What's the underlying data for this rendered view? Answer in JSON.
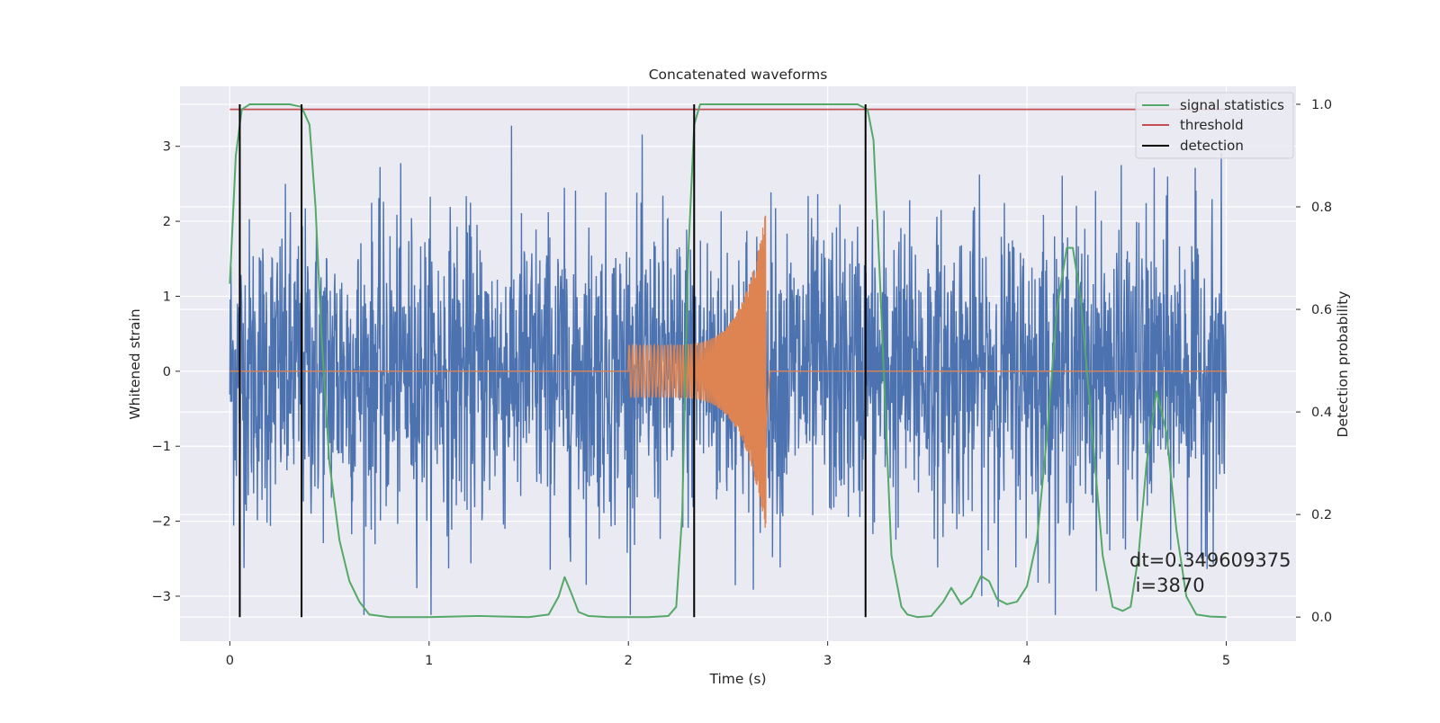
{
  "chart_data": {
    "type": "line",
    "title": "Concatenated waveforms",
    "xlabel": "Time (s)",
    "ylabel_left": "Whitened strain",
    "ylabel_right": "Detection probability",
    "xlim": [
      -0.25,
      5.35
    ],
    "ylim_left": [
      -3.6,
      3.8
    ],
    "ylim_right": [
      -0.047,
      1.035
    ],
    "xticks": [
      0,
      1,
      2,
      3,
      4,
      5
    ],
    "yticks_left": [
      -3,
      -2,
      -1,
      0,
      1,
      2,
      3
    ],
    "yticks_right": [
      0.0,
      0.2,
      0.4,
      0.6,
      0.8,
      1.0
    ],
    "xtick_labels": [
      "0",
      "1",
      "2",
      "3",
      "4",
      "5"
    ],
    "ytick_labels_left": [
      "−3",
      "−2",
      "−1",
      "0",
      "1",
      "2",
      "3"
    ],
    "ytick_labels_right": [
      "0.0",
      "0.2",
      "0.4",
      "0.6",
      "0.8",
      "1.0"
    ],
    "grid": true,
    "legend_position": "top-right",
    "legend": [
      {
        "label": "signal statistics",
        "color": "#55a868"
      },
      {
        "label": "threshold",
        "color": "#c44e52"
      },
      {
        "label": "detection",
        "color": "#000000"
      }
    ],
    "annotation": {
      "line1": "dt=0.349609375",
      "line2": " i=3870"
    },
    "colors": {
      "noise": "#4c72b0",
      "chirp": "#dd8452",
      "background": "#eaeaf2",
      "grid": "#ffffff"
    },
    "series": [
      {
        "name": "noise",
        "axis": "left",
        "x_range": [
          0,
          5
        ],
        "description_values": {
          "typical_amplitude": 1.0,
          "max": 3.4,
          "min": -3.25
        }
      },
      {
        "name": "chirp",
        "axis": "left",
        "x_range": [
          2.0,
          2.7
        ],
        "description_values": {
          "start_amplitude": 0.35,
          "peak_amplitude": 2.15,
          "end_time": 2.69
        }
      },
      {
        "name": "signal statistics",
        "axis": "right",
        "x": [
          0.0,
          0.03,
          0.06,
          0.1,
          0.15,
          0.2,
          0.3,
          0.36,
          0.4,
          0.43,
          0.46,
          0.5,
          0.55,
          0.6,
          0.65,
          0.7,
          0.8,
          1.0,
          1.25,
          1.5,
          1.6,
          1.65,
          1.68,
          1.71,
          1.75,
          1.8,
          1.9,
          2.0,
          2.1,
          2.2,
          2.24,
          2.27,
          2.3,
          2.33,
          2.36,
          2.4,
          2.6,
          2.8,
          3.0,
          3.15,
          3.2,
          3.23,
          3.26,
          3.29,
          3.32,
          3.37,
          3.4,
          3.45,
          3.52,
          3.58,
          3.62,
          3.67,
          3.72,
          3.77,
          3.81,
          3.85,
          3.9,
          3.95,
          4.0,
          4.05,
          4.1,
          4.15,
          4.2,
          4.23,
          4.27,
          4.33,
          4.38,
          4.43,
          4.48,
          4.52,
          4.56,
          4.6,
          4.65,
          4.7,
          4.75,
          4.8,
          4.85,
          4.92,
          5.0
        ],
        "y": [
          0.65,
          0.9,
          0.99,
          1.0,
          1.0,
          1.0,
          1.0,
          0.995,
          0.96,
          0.8,
          0.55,
          0.3,
          0.15,
          0.07,
          0.03,
          0.005,
          0.0,
          0.0,
          0.002,
          0.0,
          0.005,
          0.04,
          0.078,
          0.05,
          0.01,
          0.002,
          0.0,
          0.0,
          0.0,
          0.002,
          0.02,
          0.2,
          0.7,
          0.96,
          1.0,
          1.0,
          1.0,
          1.0,
          1.0,
          1.0,
          0.99,
          0.93,
          0.68,
          0.4,
          0.12,
          0.02,
          0.005,
          0.0,
          0.002,
          0.03,
          0.057,
          0.025,
          0.04,
          0.08,
          0.07,
          0.035,
          0.025,
          0.03,
          0.06,
          0.15,
          0.35,
          0.6,
          0.72,
          0.72,
          0.62,
          0.35,
          0.12,
          0.02,
          0.012,
          0.02,
          0.12,
          0.3,
          0.44,
          0.36,
          0.17,
          0.04,
          0.005,
          0.001,
          0.0
        ]
      },
      {
        "name": "threshold",
        "axis": "right",
        "x": [
          0.0,
          5.0
        ],
        "y": [
          0.99,
          0.99
        ]
      },
      {
        "name": "detection",
        "axis": "right",
        "x": [
          0.05,
          0.36,
          2.33,
          3.19
        ]
      }
    ]
  }
}
